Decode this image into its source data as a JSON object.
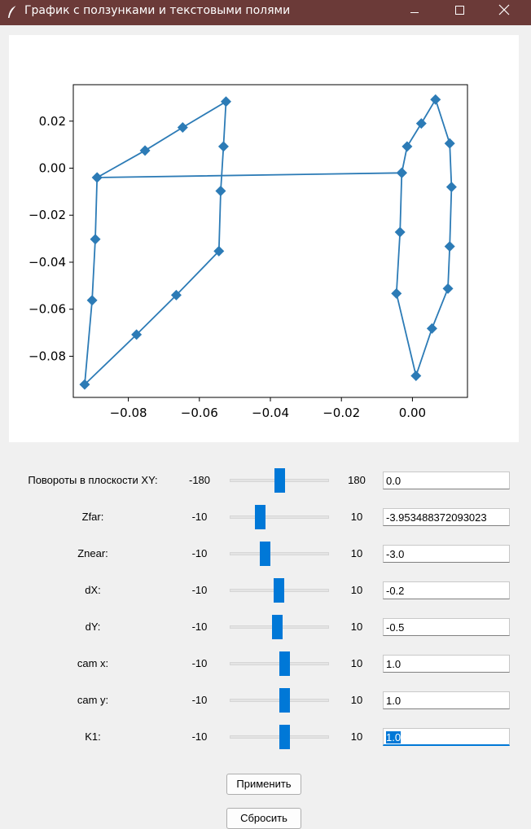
{
  "window": {
    "title": "График с ползунками и текстовыми полями"
  },
  "chart_data": {
    "type": "line",
    "marker": "diamond",
    "color": "#2c7bb6",
    "xlim": [
      -0.0955,
      0.0155
    ],
    "ylim": [
      -0.0975,
      0.0355
    ],
    "xticks": [
      -0.08,
      -0.06,
      -0.04,
      -0.02,
      0.0
    ],
    "xtick_labels": [
      "−0.08",
      "−0.06",
      "−0.04",
      "−0.02",
      "0.00"
    ],
    "yticks": [
      0.02,
      0.0,
      -0.02,
      -0.04,
      -0.06,
      -0.08
    ],
    "ytick_labels": [
      "0.02",
      "0.00",
      "−0.02",
      "−0.04",
      "−0.06",
      "−0.08"
    ],
    "x": [
      -0.0888,
      -0.0753,
      -0.0647,
      -0.0525,
      -0.0532,
      -0.054,
      -0.0545,
      -0.0665,
      -0.0777,
      -0.0923,
      -0.0902,
      -0.0893,
      -0.0888,
      -0.003,
      -0.0015,
      0.0025,
      0.0065,
      0.0105,
      0.011,
      0.0105,
      0.01,
      0.0055,
      0.001,
      -0.0045,
      -0.0035,
      -0.003,
      -0.003
    ],
    "y": [
      -0.004,
      0.0075,
      0.0173,
      0.0283,
      0.0092,
      -0.0097,
      -0.0353,
      -0.054,
      -0.0708,
      -0.092,
      -0.0562,
      -0.0302,
      -0.004,
      -0.002,
      0.0092,
      0.019,
      0.0292,
      0.0105,
      -0.008,
      -0.0333,
      -0.0512,
      -0.0682,
      -0.0883,
      -0.0533,
      -0.0272,
      -0.002,
      -0.002
    ]
  },
  "controls": [
    {
      "label": "Повороты в плоскости XY:",
      "min": "-180",
      "max": "180",
      "position": 0.5,
      "value": "0.0"
    },
    {
      "label": "Zfar:",
      "min": "-10",
      "max": "10",
      "position": 0.3,
      "value": "-3.953488372093023"
    },
    {
      "label": "Znear:",
      "min": "-10",
      "max": "10",
      "position": 0.35,
      "value": "-3.0"
    },
    {
      "label": "dX:",
      "min": "-10",
      "max": "10",
      "position": 0.49,
      "value": "-0.2"
    },
    {
      "label": "dY:",
      "min": "-10",
      "max": "10",
      "position": 0.475,
      "value": "-0.5"
    },
    {
      "label": "cam x:",
      "min": "-10",
      "max": "10",
      "position": 0.55,
      "value": "1.0"
    },
    {
      "label": "cam y:",
      "min": "-10",
      "max": "10",
      "position": 0.55,
      "value": "1.0"
    },
    {
      "label": "K1:",
      "min": "-10",
      "max": "10",
      "position": 0.55,
      "value": "1.0"
    }
  ],
  "buttons": {
    "apply": "Применить",
    "reset": "Сбросить"
  },
  "icons": {
    "app": "feather-icon",
    "minimize": "minimize-icon",
    "maximize": "maximize-icon",
    "close": "close-icon"
  }
}
